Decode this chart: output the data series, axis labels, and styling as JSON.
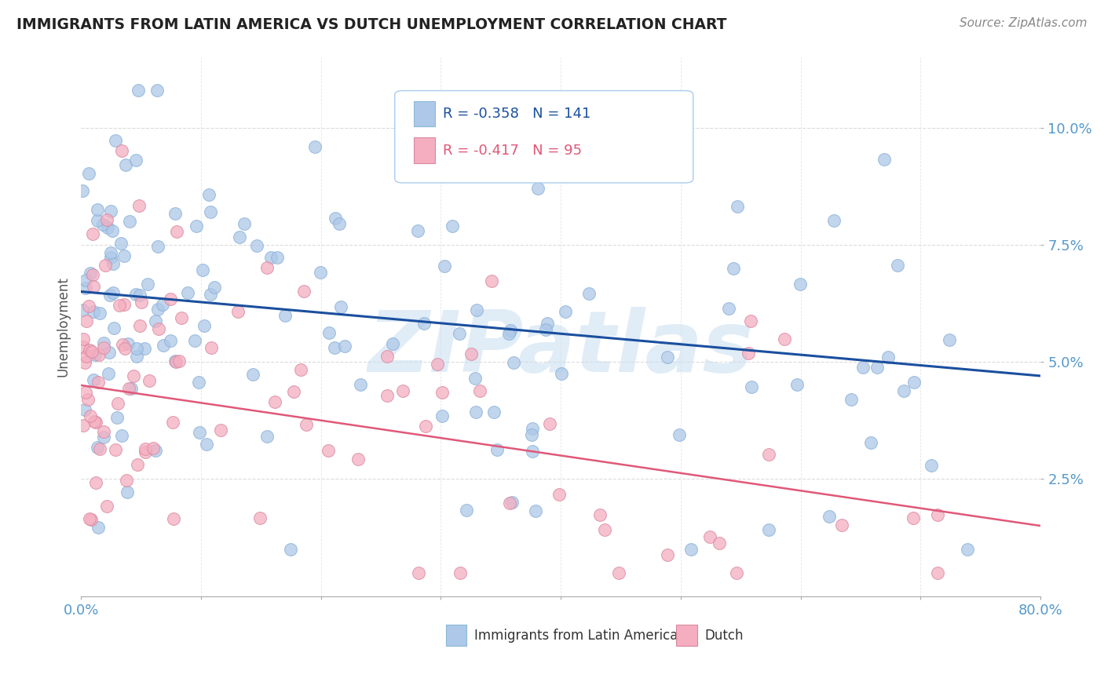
{
  "title": "IMMIGRANTS FROM LATIN AMERICA VS DUTCH UNEMPLOYMENT CORRELATION CHART",
  "source_text": "Source: ZipAtlas.com",
  "ylabel": "Unemployment",
  "xlim": [
    0.0,
    0.8
  ],
  "ylim": [
    0.0,
    0.115
  ],
  "xticks": [
    0.0,
    0.1,
    0.2,
    0.3,
    0.4,
    0.5,
    0.6,
    0.7,
    0.8
  ],
  "xticklabels": [
    "0.0%",
    "",
    "",
    "",
    "",
    "",
    "",
    "",
    "80.0%"
  ],
  "yticks": [
    0.025,
    0.05,
    0.075,
    0.1
  ],
  "yticklabels": [
    "2.5%",
    "5.0%",
    "7.5%",
    "10.0%"
  ],
  "blue_R": -0.358,
  "blue_N": 141,
  "pink_R": -0.417,
  "pink_N": 95,
  "blue_color": "#adc8e8",
  "pink_color": "#f5aec0",
  "blue_line_color": "#1a4f9e",
  "pink_line_color": "#e05878",
  "label_color": "#5599cc",
  "watermark": "ZIPatlas",
  "watermark_color": "#c8ddf0",
  "grid_color": "#cccccc",
  "title_color": "#222222",
  "blue_line_start_y": 0.065,
  "blue_line_end_y": 0.047,
  "pink_line_start_y": 0.045,
  "pink_line_end_y": 0.015
}
